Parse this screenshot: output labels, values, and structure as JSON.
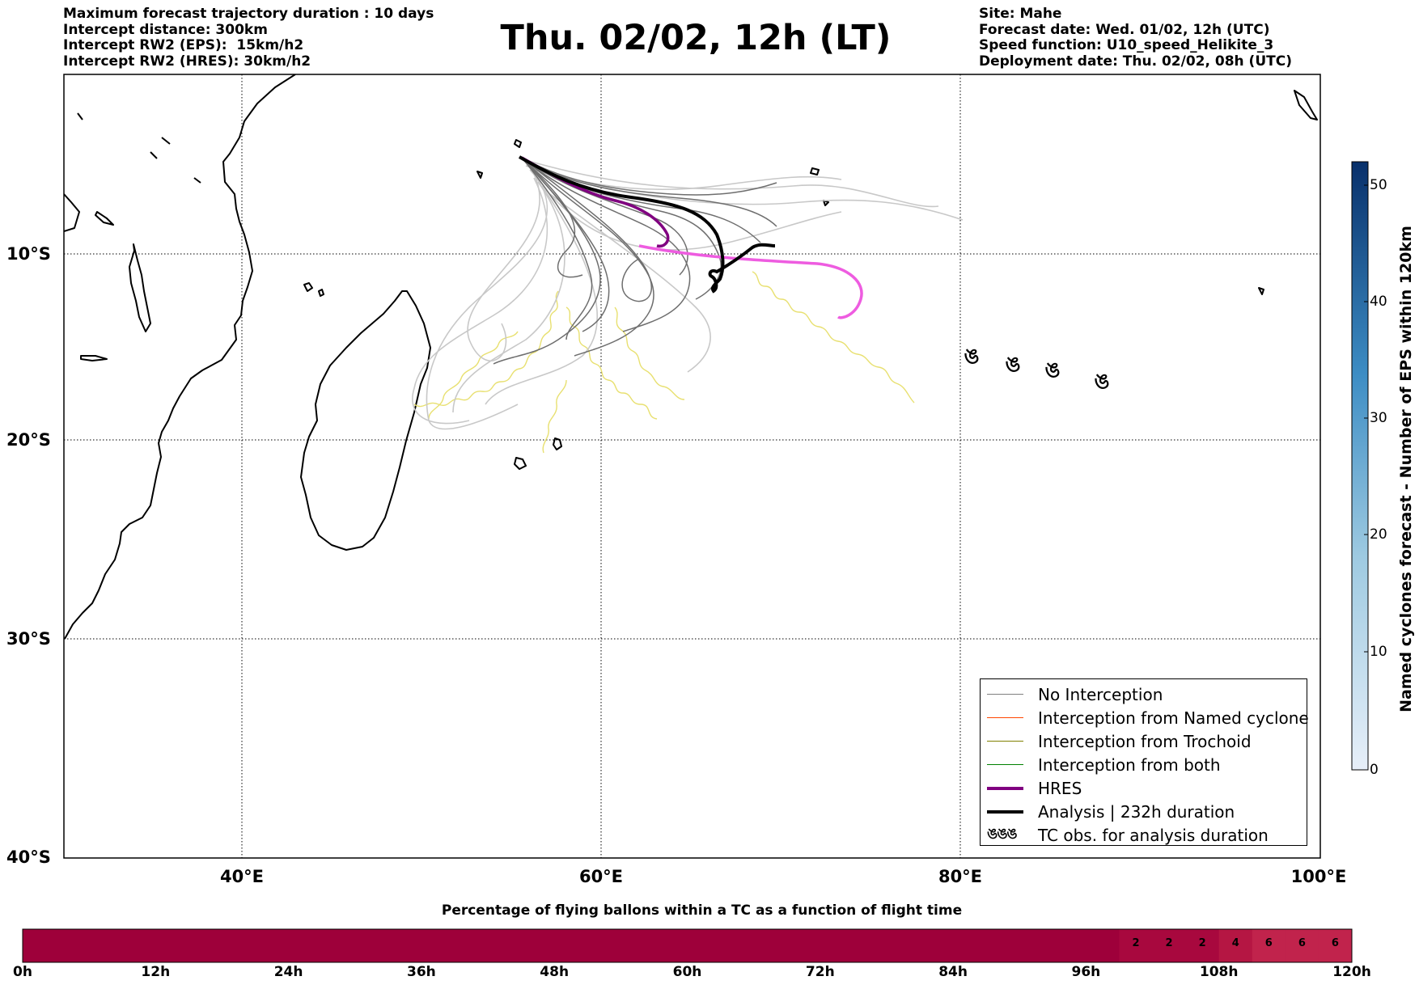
{
  "header_left": [
    "Maximum forecast trajectory duration : 10 days",
    "Intercept distance: 300km",
    "Intercept RW2 (EPS):  15km/h2",
    "Intercept RW2 (HRES): 30km/h2"
  ],
  "title": "Thu. 02/02, 12h (LT)",
  "header_right": [
    "Site: Mahe",
    "Forecast date: Wed. 01/02, 12h (UTC)",
    "Speed function: U10_speed_Helikite_3",
    "Deployment date: Thu. 02/02, 08h (UTC)"
  ],
  "map": {
    "lon_ticks": [
      "40°E",
      "60°E",
      "80°E",
      "100°E"
    ],
    "lat_ticks": [
      "10°S",
      "20°S",
      "30°S",
      "40°S"
    ],
    "lon_range": [
      30,
      100
    ],
    "lat_range": [
      -40,
      -1
    ],
    "grid": true,
    "tc_obs_symbol": "cyclone-icon",
    "tc_obs_positions": [
      [
        80.7,
        -15.2
      ],
      [
        83.0,
        -15.7
      ],
      [
        85.2,
        -16.0
      ],
      [
        87.9,
        -16.6
      ]
    ]
  },
  "legend": {
    "placement": "lower-right",
    "items": [
      {
        "label": "No Interception",
        "color": "#808080",
        "style": "thin"
      },
      {
        "label": "Interception from Named cyclone",
        "color": "#ff4500",
        "style": "thin"
      },
      {
        "label": "Interception from Trochoid",
        "color": "#808000",
        "style": "thin"
      },
      {
        "label": "Interception from both",
        "color": "#008000",
        "style": "thin"
      },
      {
        "label": "HRES",
        "color": "#800080",
        "style": "thick"
      },
      {
        "label": "Analysis | 232h duration",
        "color": "#000000",
        "style": "thick"
      },
      {
        "label": "TC obs. for analysis duration",
        "color": "#000000",
        "style": "symbol",
        "symbol": "ঙঙঙ"
      }
    ]
  },
  "colorbar": {
    "label": "Named cyclones forecast - Number of EPS within 120km",
    "ticks": [
      "0",
      "10",
      "20",
      "30",
      "40",
      "50"
    ],
    "range": [
      0,
      52
    ],
    "colors": [
      "#e7eff9",
      "#08306b"
    ]
  },
  "flight_time_bar": {
    "title": "Percentage of flying ballons within a TC as a function of flight time",
    "tick_labels": [
      "0h",
      "12h",
      "24h",
      "36h",
      "48h",
      "60h",
      "72h",
      "84h",
      "96h",
      "108h",
      "120h"
    ],
    "cell_hours": 3,
    "values": [
      0,
      0,
      0,
      0,
      0,
      0,
      0,
      0,
      0,
      0,
      0,
      0,
      0,
      0,
      0,
      0,
      0,
      0,
      0,
      0,
      0,
      0,
      0,
      0,
      0,
      0,
      0,
      0,
      0,
      0,
      0,
      0,
      0,
      2,
      2,
      2,
      4,
      6,
      6,
      6
    ],
    "colors": {
      "0": "#9e003a",
      "2": "#a8083e",
      "4": "#b51643",
      "6": "#c1234c"
    }
  },
  "chart_data": {
    "type": "heatmap",
    "title": "Percentage of flying ballons within a TC as a function of flight time",
    "x": [
      "0h",
      "3h",
      "6h",
      "9h",
      "12h",
      "15h",
      "18h",
      "21h",
      "24h",
      "27h",
      "30h",
      "33h",
      "36h",
      "39h",
      "42h",
      "45h",
      "48h",
      "51h",
      "54h",
      "57h",
      "60h",
      "63h",
      "66h",
      "69h",
      "72h",
      "75h",
      "78h",
      "81h",
      "84h",
      "87h",
      "90h",
      "93h",
      "96h",
      "99h",
      "102h",
      "105h",
      "108h",
      "111h",
      "114h",
      "117h"
    ],
    "values": [
      0,
      0,
      0,
      0,
      0,
      0,
      0,
      0,
      0,
      0,
      0,
      0,
      0,
      0,
      0,
      0,
      0,
      0,
      0,
      0,
      0,
      0,
      0,
      0,
      0,
      0,
      0,
      0,
      0,
      0,
      0,
      0,
      0,
      2,
      2,
      2,
      4,
      6,
      6,
      6
    ]
  }
}
